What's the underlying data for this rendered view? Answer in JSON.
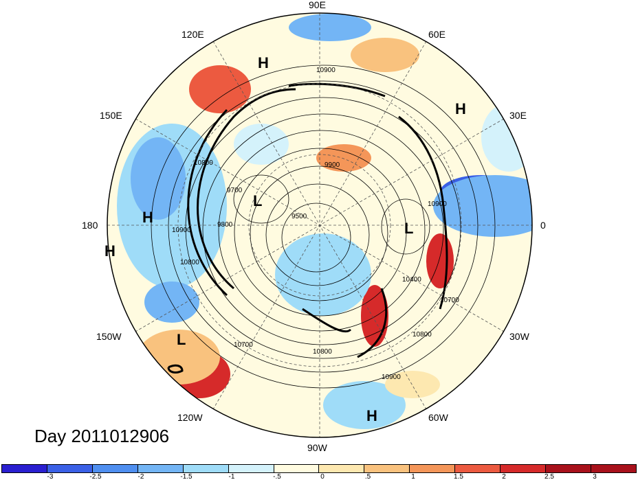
{
  "map": {
    "longitude_labels": [
      "90E",
      "60E",
      "30E",
      "0",
      "30W",
      "60W",
      "90W",
      "120W",
      "150W",
      "180",
      "150E",
      "120E"
    ],
    "pressure_systems": [
      {
        "type": "H"
      },
      {
        "type": "H"
      },
      {
        "type": "H"
      },
      {
        "type": "H"
      },
      {
        "type": "H"
      },
      {
        "type": "L"
      },
      {
        "type": "L"
      },
      {
        "type": "L"
      }
    ],
    "contour_labels": [
      "10900",
      "9900",
      "9700",
      "9800",
      "9500",
      "10800",
      "10900",
      "10400",
      "10700",
      "10800",
      "10700",
      "10800",
      "10900",
      "10800",
      "10900"
    ]
  },
  "day_label": "Day 2011012906",
  "colorbar": {
    "colors": [
      "#2a1fd0",
      "#3a60e6",
      "#4f8ff0",
      "#73b5f5",
      "#9fdcf8",
      "#d4f2fb",
      "#fffbe0",
      "#fde8b0",
      "#f9c27e",
      "#f49659",
      "#ec5a40",
      "#d62a2a",
      "#a8111b"
    ],
    "ticks": [
      "-3",
      "-2.5",
      "-2",
      "-1.5",
      "-1",
      "-.5",
      "0",
      ".5",
      "1",
      "1.5",
      "2",
      "2.5",
      "3"
    ]
  },
  "colors": {
    "outline": "#000000",
    "contour": "#000000",
    "grid": "#555555"
  }
}
